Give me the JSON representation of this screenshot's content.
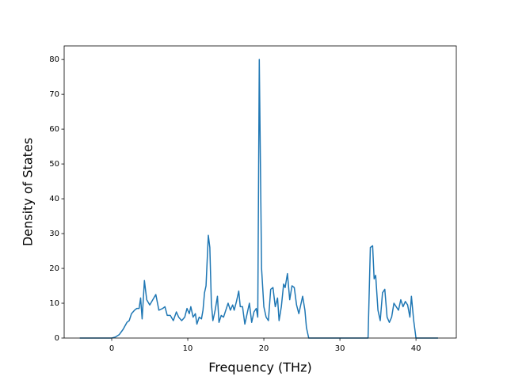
{
  "chart_data": {
    "type": "line",
    "xlabel": "Frequency (THz)",
    "ylabel": "Density of States",
    "color": "#1f77b4",
    "x": [
      -4.2,
      0,
      0.5,
      1,
      1.5,
      2,
      2.3,
      2.6,
      3,
      3.3,
      3.6,
      3.8,
      4.0,
      4.3,
      4.6,
      5.0,
      5.4,
      5.8,
      6.2,
      6.7,
      7.0,
      7.3,
      7.7,
      8.1,
      8.5,
      8.8,
      9.2,
      9.6,
      9.9,
      10.2,
      10.4,
      10.7,
      11.0,
      11.2,
      11.5,
      11.8,
      12.0,
      12.2,
      12.4,
      12.7,
      12.9,
      13.1,
      13.3,
      13.6,
      13.9,
      14.1,
      14.4,
      14.7,
      15.0,
      15.3,
      15.6,
      15.9,
      16.1,
      16.4,
      16.7,
      16.9,
      17.2,
      17.5,
      17.8,
      18.1,
      18.4,
      18.7,
      19.0,
      19.2,
      19.4,
      19.7,
      20.0,
      20.3,
      20.6,
      20.9,
      21.2,
      21.5,
      21.8,
      22.0,
      22.3,
      22.6,
      22.8,
      23.1,
      23.4,
      23.7,
      24.0,
      24.3,
      24.6,
      24.9,
      25.1,
      25.4,
      25.6,
      25.9,
      33.7,
      34.0,
      34.3,
      34.5,
      34.7,
      35.0,
      35.3,
      35.6,
      35.9,
      36.2,
      36.5,
      36.8,
      37.1,
      37.4,
      37.7,
      38.0,
      38.3,
      38.6,
      38.9,
      39.2,
      39.4,
      39.7,
      40.0,
      42.9
    ],
    "values": [
      0,
      0,
      0.3,
      1,
      2.5,
      4.5,
      5,
      7,
      8,
      8.5,
      8.5,
      11.5,
      5.5,
      16.5,
      11,
      9.5,
      11,
      12.5,
      8,
      8.5,
      9,
      6.5,
      6.5,
      5,
      7.5,
      6,
      5,
      6,
      8.5,
      7,
      9,
      6,
      7,
      4,
      6,
      5.5,
      8,
      13,
      15,
      29.5,
      26,
      10,
      5,
      8,
      12,
      4.5,
      6.5,
      6,
      8,
      10,
      8,
      9.5,
      8,
      10.5,
      13.5,
      9,
      9,
      4,
      7,
      10,
      4.5,
      7.5,
      8.5,
      6,
      80,
      20,
      9,
      6,
      5,
      14,
      14.5,
      9,
      11.5,
      5,
      9,
      15.5,
      14.5,
      18.5,
      11,
      15,
      14.5,
      9.5,
      7,
      10,
      12,
      8,
      3,
      0,
      0,
      26,
      26.5,
      17,
      18,
      8,
      5,
      13,
      14,
      6,
      4.5,
      6,
      10,
      9,
      8,
      11,
      9,
      10.5,
      9.5,
      6,
      12,
      5,
      0,
      0
    ],
    "xlim": [
      -6.25,
      45.3
    ],
    "ylim": [
      0,
      83.9
    ],
    "xticks": [
      0,
      10,
      20,
      30,
      40
    ],
    "yticks": [
      0,
      10,
      20,
      30,
      40,
      50,
      60,
      70,
      80
    ]
  }
}
